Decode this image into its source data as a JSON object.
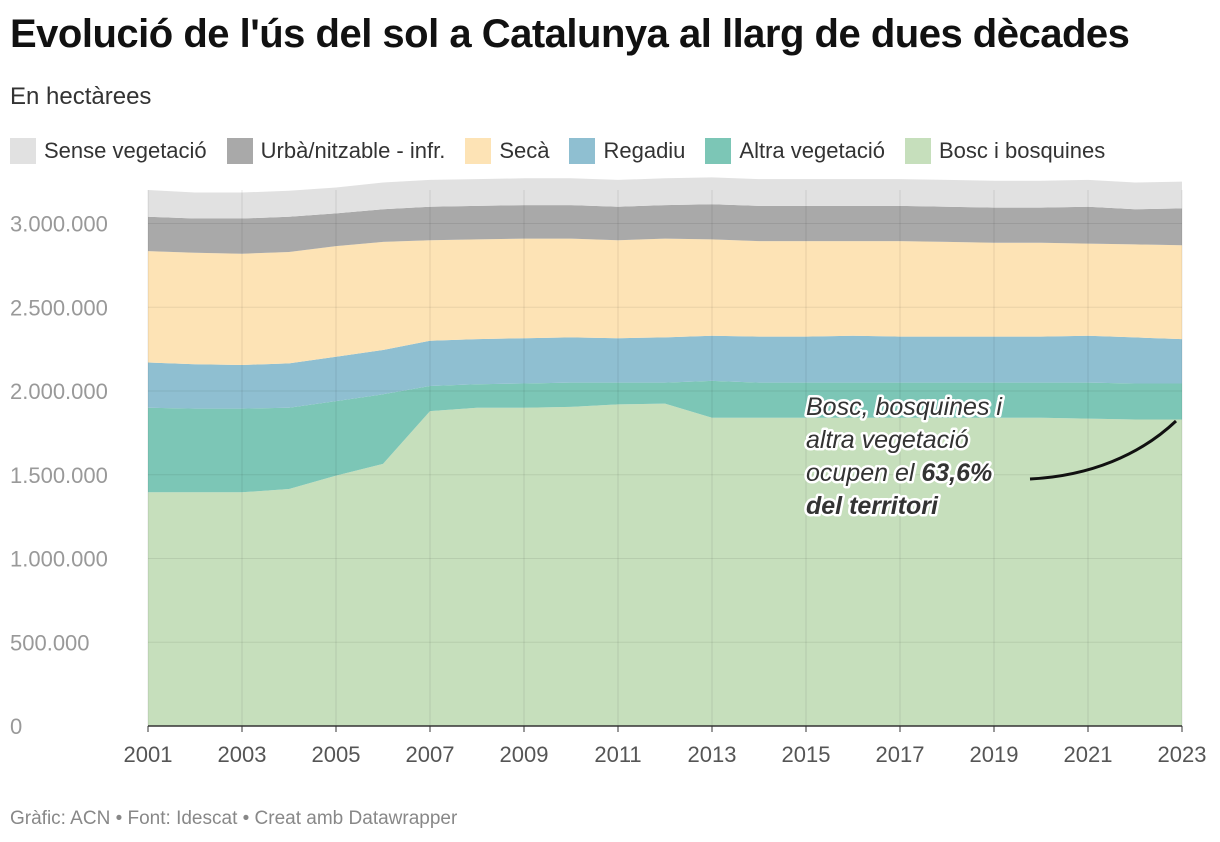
{
  "title": "Evolució de l'ús del sol a Catalunya al llarg de dues dècades",
  "subtitle": "En hectàrees",
  "footer": "Gràfic: ACN • Font: Idescat • Creat amb Datawrapper",
  "legend": [
    {
      "label": "Sense vegetació",
      "color": "#e1e1e1"
    },
    {
      "label": "Urbà/nitzable - infr.",
      "color": "#a9a9a9"
    },
    {
      "label": "Secà",
      "color": "#fde3b5"
    },
    {
      "label": "Regadiu",
      "color": "#8fbfd1"
    },
    {
      "label": "Altra vegetació",
      "color": "#7cc6b6"
    },
    {
      "label": "Bosc i bosquines",
      "color": "#c6dfbc"
    }
  ],
  "annotation": {
    "line1": "Bosc, bosquines i",
    "line2": "altra vegetació",
    "line3_prefix": "ocupen el ",
    "line3_bold": "63,6%",
    "line4": "del territori"
  },
  "chart_data": {
    "type": "area",
    "stacked": true,
    "title": "Evolució de l'ús del sol a Catalunya al llarg de dues dècades",
    "ylabel": "En hectàrees",
    "ylim": [
      0,
      3200000
    ],
    "y_ticks": [
      0,
      500000,
      1000000,
      1500000,
      2000000,
      2500000,
      3000000
    ],
    "y_tick_labels": [
      "0",
      "500.000",
      "1.000.000",
      "1.500.000",
      "2.000.000",
      "2.500.000",
      "3.000.000"
    ],
    "x_tick_labels": [
      "2001",
      "2003",
      "2005",
      "2007",
      "2009",
      "2011",
      "2013",
      "2015",
      "2017",
      "2019",
      "2021",
      "2023"
    ],
    "x": [
      2001,
      2002,
      2003,
      2004,
      2005,
      2006,
      2007,
      2008,
      2009,
      2010,
      2011,
      2012,
      2013,
      2014,
      2015,
      2016,
      2017,
      2018,
      2019,
      2020,
      2021,
      2022,
      2023
    ],
    "series": [
      {
        "name": "Bosc i bosquines",
        "color": "#c6dfbc",
        "values": [
          1395000,
          1395000,
          1395000,
          1415000,
          1495000,
          1565000,
          1880000,
          1900000,
          1900000,
          1905000,
          1920000,
          1925000,
          1840000,
          1840000,
          1840000,
          1840000,
          1840000,
          1840000,
          1840000,
          1840000,
          1835000,
          1830000,
          1830000
        ]
      },
      {
        "name": "Altra vegetació",
        "color": "#7cc6b6",
        "values": [
          505000,
          500000,
          500000,
          485000,
          445000,
          415000,
          150000,
          140000,
          145000,
          145000,
          130000,
          125000,
          220000,
          210000,
          210000,
          210000,
          210000,
          210000,
          210000,
          210000,
          215000,
          215000,
          215000
        ]
      },
      {
        "name": "Regadiu",
        "color": "#8fbfd1",
        "values": [
          270000,
          265000,
          260000,
          265000,
          265000,
          265000,
          270000,
          270000,
          270000,
          270000,
          265000,
          270000,
          270000,
          275000,
          275000,
          280000,
          275000,
          275000,
          275000,
          275000,
          280000,
          275000,
          265000
        ]
      },
      {
        "name": "Secà",
        "color": "#fde3b5",
        "values": [
          665000,
          665000,
          665000,
          665000,
          660000,
          645000,
          600000,
          595000,
          595000,
          590000,
          585000,
          590000,
          575000,
          570000,
          570000,
          565000,
          570000,
          565000,
          560000,
          560000,
          550000,
          555000,
          560000
        ]
      },
      {
        "name": "Urbà/nitzable - infr.",
        "color": "#a9a9a9",
        "values": [
          205000,
          205000,
          210000,
          210000,
          195000,
          195000,
          200000,
          200000,
          200000,
          200000,
          200000,
          200000,
          210000,
          210000,
          210000,
          210000,
          210000,
          210000,
          210000,
          210000,
          220000,
          210000,
          220000
        ]
      },
      {
        "name": "Sense vegetació",
        "color": "#e1e1e1",
        "values": [
          160000,
          155000,
          155000,
          155000,
          155000,
          160000,
          160000,
          160000,
          160000,
          160000,
          160000,
          160000,
          160000,
          160000,
          160000,
          160000,
          160000,
          160000,
          160000,
          160000,
          160000,
          160000,
          160000
        ]
      }
    ]
  }
}
